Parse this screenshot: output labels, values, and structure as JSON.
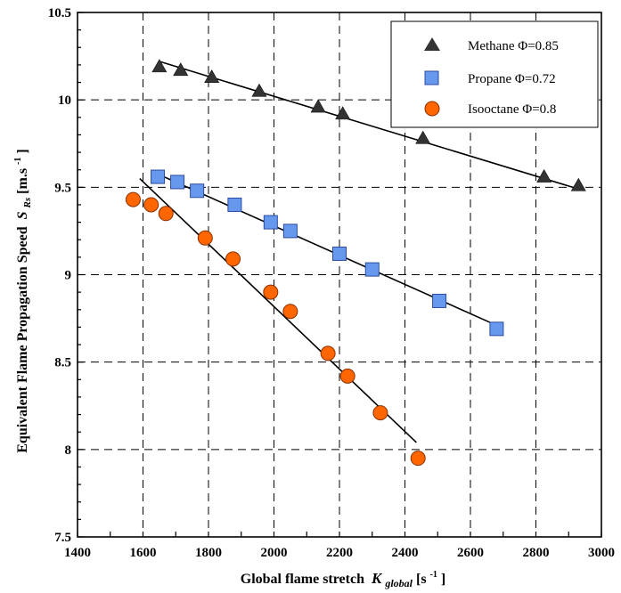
{
  "chart_data": {
    "type": "scatter",
    "title": "",
    "xlabel": {
      "main": "Global flame stretch",
      "symbol": "K",
      "subscript": "global",
      "unit_prefix": " [s",
      "unit_exp": "-1",
      "unit_suffix": "]"
    },
    "ylabel": {
      "main": "Equivalent Flame Propagation Speed",
      "symbol": "S",
      "subscript": "Rs",
      "unit_prefix": " [m.s",
      "unit_exp": "-1",
      "unit_suffix": "]"
    },
    "xlim": [
      1400,
      3000
    ],
    "ylim": [
      7.5,
      10.5
    ],
    "x_ticks": [
      1400,
      1600,
      1800,
      2000,
      2200,
      2400,
      2600,
      2800,
      3000
    ],
    "y_ticks": [
      7.5,
      8,
      8.5,
      9,
      9.5,
      10,
      10.5
    ],
    "x_tick_labels": [
      "1400",
      "1600",
      "1800",
      "2000",
      "2200",
      "2400",
      "2600",
      "2800",
      "3000"
    ],
    "y_tick_labels": [
      "7.5",
      "8",
      "8.5",
      "9",
      "9.5",
      "10",
      "10.5"
    ],
    "x_grid_dashed": [
      1600,
      1800,
      2000,
      2200,
      2400,
      2600,
      2800
    ],
    "y_grid_dashed": [
      8,
      8.5,
      9,
      9.5,
      10
    ],
    "grid": true,
    "legend_position": "top-right",
    "series": [
      {
        "name": "Methane Φ=0.85",
        "marker": "triangle",
        "color": "#333333",
        "x": [
          1650,
          1715,
          1810,
          1955,
          2135,
          2210,
          2455,
          2825,
          2930
        ],
        "y": [
          10.19,
          10.17,
          10.13,
          10.05,
          9.96,
          9.92,
          9.78,
          9.56,
          9.51
        ],
        "fit": {
          "x": [
            1650,
            2930
          ],
          "y": [
            10.22,
            9.49
          ]
        }
      },
      {
        "name": "Propane Φ=0.72",
        "marker": "square",
        "color": "#6699ee",
        "x": [
          1645,
          1705,
          1765,
          1880,
          1990,
          2050,
          2200,
          2300,
          2505,
          2680
        ],
        "y": [
          9.56,
          9.53,
          9.48,
          9.4,
          9.3,
          9.25,
          9.12,
          9.03,
          8.85,
          8.69
        ],
        "fit": {
          "x": [
            1640,
            2680
          ],
          "y": [
            9.58,
            8.71
          ]
        }
      },
      {
        "name": "Isooctane Φ=0.8",
        "marker": "circle",
        "color": "#ff6600",
        "x": [
          1570,
          1625,
          1670,
          1790,
          1875,
          1990,
          2050,
          2165,
          2225,
          2325,
          2440
        ],
        "y": [
          9.43,
          9.4,
          9.35,
          9.21,
          9.09,
          8.9,
          8.79,
          8.55,
          8.42,
          8.21,
          7.95
        ],
        "fit": {
          "x": [
            1590,
            2435
          ],
          "y": [
            9.55,
            8.04
          ]
        }
      }
    ]
  }
}
